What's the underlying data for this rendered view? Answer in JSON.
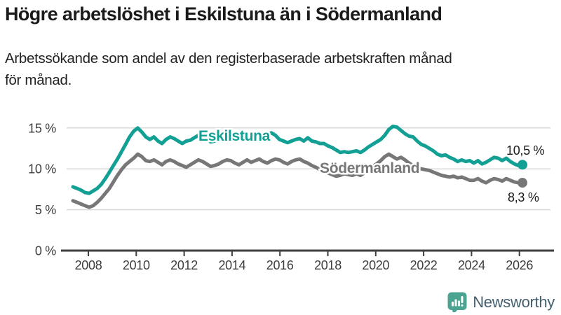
{
  "header": {
    "title": "Högre arbetslöshet i Eskilstuna än i Södermanland",
    "subtitle_line1": "Arbetssökande som andel av den registerbaserade arbetskraften månad",
    "subtitle_line2": "för månad."
  },
  "chart_data": {
    "type": "line",
    "title": "Högre arbetslöshet i Eskilstuna än i Södermanland",
    "xlabel": "",
    "ylabel": "%",
    "x_start_year": 2007.5,
    "x_end_year": 2026.17,
    "x_step_months": 2,
    "xticks": [
      2008,
      2010,
      2012,
      2014,
      2016,
      2018,
      2020,
      2022,
      2024,
      2026
    ],
    "ylim": [
      0,
      16
    ],
    "ytick_values": [
      0,
      5,
      10,
      15
    ],
    "ytick_labels": [
      "0 %",
      "5 %",
      "10 %",
      "15 %"
    ],
    "gridline_values": [
      5,
      10,
      15
    ],
    "grid": true,
    "legend_position": "inline-labels",
    "series": [
      {
        "name": "Eskilstuna",
        "color": "#12a095",
        "end_label": "10,5 %",
        "end_value": 10.5,
        "values": [
          7.8,
          7.6,
          7.4,
          7.1,
          7.0,
          7.3,
          7.6,
          8.1,
          8.8,
          9.6,
          10.4,
          11.2,
          12.1,
          13.0,
          13.9,
          14.6,
          15.0,
          14.5,
          13.9,
          13.6,
          13.9,
          13.4,
          13.1,
          13.6,
          13.9,
          13.7,
          13.4,
          13.1,
          13.4,
          13.5,
          13.8,
          14.1,
          13.9,
          13.7,
          13.3,
          13.4,
          13.6,
          14.0,
          14.1,
          14.1,
          13.9,
          14.1,
          13.9,
          13.7,
          13.5,
          13.6,
          13.8,
          14.0,
          14.2,
          14.4,
          14.1,
          13.6,
          13.4,
          13.2,
          13.4,
          13.6,
          13.7,
          13.4,
          13.8,
          13.4,
          13.3,
          13.1,
          13.1,
          12.8,
          12.6,
          12.3,
          12.0,
          12.1,
          12.0,
          12.1,
          12.2,
          12.0,
          12.3,
          12.7,
          13.0,
          13.3,
          13.6,
          14.1,
          14.8,
          15.2,
          15.1,
          14.7,
          14.3,
          14.0,
          13.9,
          13.4,
          13.0,
          12.8,
          12.5,
          12.2,
          11.8,
          11.6,
          11.7,
          11.4,
          11.2,
          10.9,
          11.1,
          10.9,
          11.0,
          10.7,
          11.0,
          10.6,
          10.8,
          11.1,
          11.4,
          11.3,
          11.0,
          11.3,
          10.9,
          10.6,
          10.4,
          10.5
        ]
      },
      {
        "name": "Södermanland",
        "color": "#777777",
        "end_label": "8,3 %",
        "end_value": 8.3,
        "values": [
          6.1,
          5.9,
          5.7,
          5.5,
          5.3,
          5.5,
          5.9,
          6.4,
          7.0,
          7.6,
          8.4,
          9.2,
          9.9,
          10.5,
          10.9,
          11.3,
          11.8,
          11.5,
          11.0,
          10.9,
          11.1,
          10.8,
          10.5,
          10.9,
          11.1,
          10.9,
          10.6,
          10.4,
          10.2,
          10.5,
          10.8,
          11.1,
          10.9,
          10.6,
          10.3,
          10.4,
          10.6,
          10.9,
          11.1,
          11.0,
          10.7,
          10.5,
          10.8,
          11.1,
          10.8,
          11.0,
          11.2,
          10.9,
          10.7,
          11.0,
          11.2,
          11.1,
          10.8,
          10.6,
          10.9,
          11.1,
          11.2,
          10.9,
          10.7,
          10.4,
          10.2,
          9.9,
          9.7,
          9.5,
          9.3,
          9.1,
          9.2,
          9.4,
          9.3,
          9.2,
          9.4,
          9.2,
          9.5,
          9.9,
          10.3,
          10.6,
          11.0,
          11.5,
          11.8,
          11.5,
          11.2,
          11.4,
          11.1,
          10.7,
          10.4,
          10.1,
          10.0,
          9.9,
          9.8,
          9.6,
          9.4,
          9.2,
          9.1,
          9.0,
          9.1,
          8.9,
          9.0,
          8.8,
          8.6,
          8.6,
          8.8,
          8.5,
          8.3,
          8.6,
          8.8,
          8.7,
          8.5,
          8.8,
          8.6,
          8.4,
          8.3,
          8.3
        ]
      }
    ]
  },
  "colors": {
    "background": "#ffffff",
    "accent_teal": "#12a095",
    "series_gray": "#777777",
    "gridline": "#d9d9d9",
    "axis": "#3f3f3f",
    "tick_label": "#3d3d3d",
    "value_label": "#1a1a1a",
    "logo_teal": "#4ba392",
    "logo_text": "#44606f"
  },
  "footer": {
    "brand": "Newsworthy"
  }
}
